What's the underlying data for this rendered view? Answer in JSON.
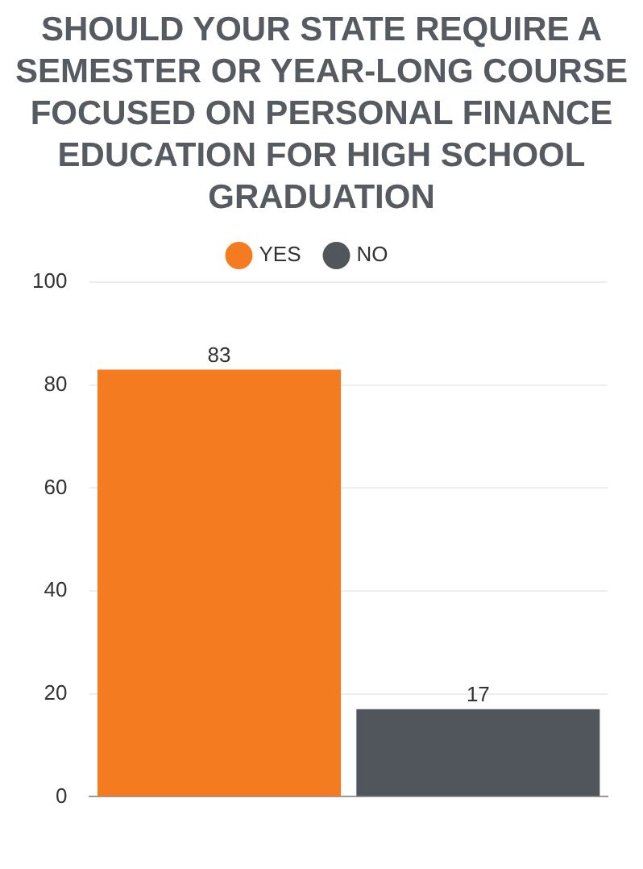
{
  "chart_data": {
    "type": "bar",
    "title": "SHOULD YOUR STATE REQUIRE A SEMESTER OR YEAR-LONG COURSE FOCUSED ON PERSONAL FINANCE EDUCATION FOR HIGH SCHOOL GRADUATION",
    "categories": [
      null
    ],
    "series": [
      {
        "name": "YES",
        "color": "#f47b20",
        "values": [
          83
        ]
      },
      {
        "name": "NO",
        "color": "#50565c",
        "values": [
          17
        ]
      }
    ],
    "ylim": [
      0,
      100
    ],
    "yticks": [
      0,
      20,
      40,
      60,
      80,
      100
    ],
    "grid": "y",
    "legend": "top",
    "data_labels": true
  }
}
